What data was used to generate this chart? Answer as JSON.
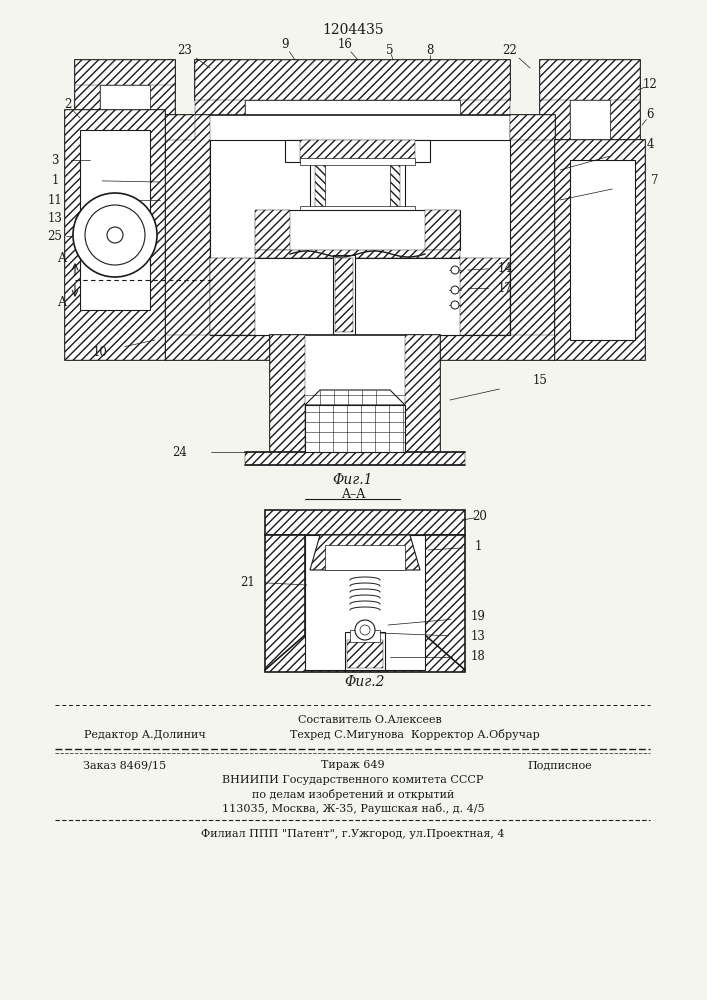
{
  "patent_number": "1204435",
  "fig1_caption": "Φиг.1",
  "fig2_caption": "Φиг.2",
  "section_label": "A–A",
  "footer_composer": "Составитель О.Алексеев",
  "footer_editor": "Редактор А.Долинич",
  "footer_techred_corr": "Техред С.Мигунова  Корректор А.Обручар",
  "footer_order": "Заказ 8469/15",
  "footer_tirazh": "Тираж 649",
  "footer_podpisnoe": "Подписное",
  "footer_vniiki": "ВНИИПИ Государственного комитета СССР",
  "footer_po_delam": "по делам изобретений и открытий",
  "footer_address": "113035, Москва, Ж-35, Раушская наб., д. 4/5",
  "footer_filial": "Филиал ППП \"Патент\", г.Ужгород, ул.Проектная, 4",
  "bg_color": "#f5f5f0",
  "drawing_color": "#1a1a1a"
}
